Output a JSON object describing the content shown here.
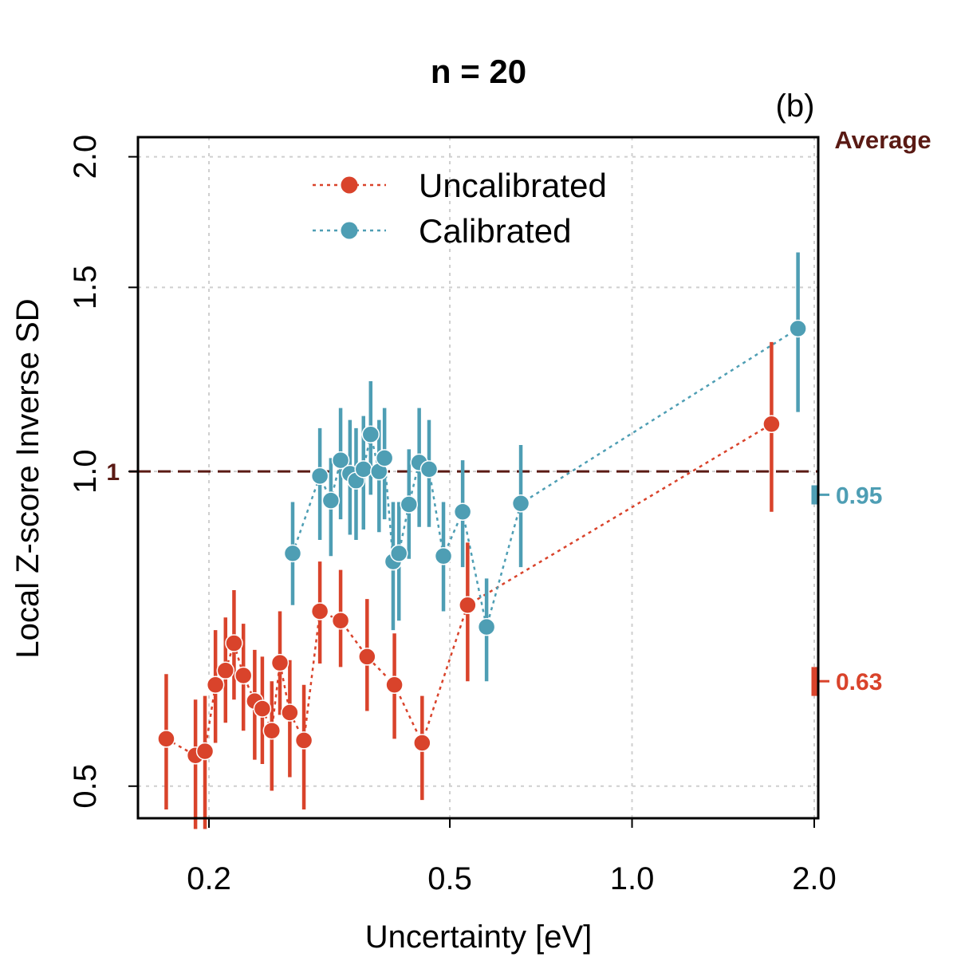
{
  "chart_data": {
    "type": "scatter",
    "title": "n = 20",
    "panel_label": "(b)",
    "xlabel": "Uncertainty [eV]",
    "ylabel": "Local Z-score Inverse SD",
    "x_scale": "log",
    "y_scale": "log",
    "xlim": [
      0.155,
      2.0
    ],
    "ylim": [
      0.47,
      2.07
    ],
    "x_ticks": [
      0.2,
      0.5,
      1.0,
      2.0
    ],
    "x_tick_labels": [
      "0.2",
      "0.5",
      "1.0",
      "2.0"
    ],
    "y_ticks": [
      0.5,
      1.0,
      1.5,
      2.0
    ],
    "y_tick_labels": [
      "0.5",
      "1.0",
      "1.5",
      "2.0"
    ],
    "grid": true,
    "legend_position": "top-left",
    "reference_line": {
      "y": 1.0,
      "label": "1",
      "color": "#5a1a14"
    },
    "average_title": "Average",
    "average_title_color": "#5a1a14",
    "series": [
      {
        "name": "Uncalibrated",
        "color": "#d9432b",
        "average": 0.63,
        "average_label": "0.63",
        "average_ci": [
          0.61,
          0.65
        ],
        "points": [
          {
            "x": 0.17,
            "y": 0.555,
            "lo": 0.475,
            "hi": 0.64
          },
          {
            "x": 0.19,
            "y": 0.535,
            "lo": 0.455,
            "hi": 0.605
          },
          {
            "x": 0.197,
            "y": 0.54,
            "lo": 0.455,
            "hi": 0.61
          },
          {
            "x": 0.205,
            "y": 0.625,
            "lo": 0.55,
            "hi": 0.705
          },
          {
            "x": 0.213,
            "y": 0.645,
            "lo": 0.575,
            "hi": 0.725
          },
          {
            "x": 0.22,
            "y": 0.685,
            "lo": 0.605,
            "hi": 0.77
          },
          {
            "x": 0.228,
            "y": 0.638,
            "lo": 0.565,
            "hi": 0.715
          },
          {
            "x": 0.238,
            "y": 0.603,
            "lo": 0.53,
            "hi": 0.675
          },
          {
            "x": 0.245,
            "y": 0.593,
            "lo": 0.525,
            "hi": 0.665
          },
          {
            "x": 0.254,
            "y": 0.565,
            "lo": 0.495,
            "hi": 0.63
          },
          {
            "x": 0.262,
            "y": 0.656,
            "lo": 0.585,
            "hi": 0.735
          },
          {
            "x": 0.272,
            "y": 0.588,
            "lo": 0.51,
            "hi": 0.66
          },
          {
            "x": 0.287,
            "y": 0.553,
            "lo": 0.475,
            "hi": 0.625
          },
          {
            "x": 0.305,
            "y": 0.735,
            "lo": 0.655,
            "hi": 0.82
          },
          {
            "x": 0.33,
            "y": 0.72,
            "lo": 0.65,
            "hi": 0.805
          },
          {
            "x": 0.365,
            "y": 0.665,
            "lo": 0.59,
            "hi": 0.755
          },
          {
            "x": 0.405,
            "y": 0.625,
            "lo": 0.555,
            "hi": 0.7
          },
          {
            "x": 0.45,
            "y": 0.55,
            "lo": 0.485,
            "hi": 0.61
          },
          {
            "x": 0.535,
            "y": 0.745,
            "lo": 0.63,
            "hi": 0.855
          },
          {
            "x": 1.7,
            "y": 1.11,
            "lo": 0.915,
            "hi": 1.33
          }
        ]
      },
      {
        "name": "Calibrated",
        "color": "#4e9eb4",
        "average": 0.95,
        "average_label": "0.95",
        "average_ci": [
          0.93,
          0.97
        ],
        "points": [
          {
            "x": 0.275,
            "y": 0.835,
            "lo": 0.745,
            "hi": 0.935
          },
          {
            "x": 0.305,
            "y": 0.99,
            "lo": 0.86,
            "hi": 1.1
          },
          {
            "x": 0.318,
            "y": 0.938,
            "lo": 0.83,
            "hi": 1.03
          },
          {
            "x": 0.33,
            "y": 1.025,
            "lo": 0.9,
            "hi": 1.15
          },
          {
            "x": 0.342,
            "y": 0.995,
            "lo": 0.87,
            "hi": 1.12
          },
          {
            "x": 0.35,
            "y": 0.98,
            "lo": 0.86,
            "hi": 1.1
          },
          {
            "x": 0.36,
            "y": 1.005,
            "lo": 0.88,
            "hi": 1.13
          },
          {
            "x": 0.37,
            "y": 1.085,
            "lo": 0.95,
            "hi": 1.22
          },
          {
            "x": 0.382,
            "y": 1.0,
            "lo": 0.875,
            "hi": 1.12
          },
          {
            "x": 0.39,
            "y": 1.03,
            "lo": 0.9,
            "hi": 1.15
          },
          {
            "x": 0.403,
            "y": 0.82,
            "lo": 0.705,
            "hi": 0.935
          },
          {
            "x": 0.412,
            "y": 0.835,
            "lo": 0.72,
            "hi": 0.935
          },
          {
            "x": 0.428,
            "y": 0.93,
            "lo": 0.825,
            "hi": 1.05
          },
          {
            "x": 0.445,
            "y": 1.02,
            "lo": 0.885,
            "hi": 1.15
          },
          {
            "x": 0.462,
            "y": 1.005,
            "lo": 0.885,
            "hi": 1.12
          },
          {
            "x": 0.488,
            "y": 0.83,
            "lo": 0.735,
            "hi": 0.935
          },
          {
            "x": 0.525,
            "y": 0.915,
            "lo": 0.81,
            "hi": 1.025
          },
          {
            "x": 0.575,
            "y": 0.71,
            "lo": 0.63,
            "hi": 0.79
          },
          {
            "x": 0.655,
            "y": 0.932,
            "lo": 0.81,
            "hi": 1.06
          },
          {
            "x": 1.88,
            "y": 1.37,
            "lo": 1.14,
            "hi": 1.62
          }
        ]
      }
    ]
  }
}
